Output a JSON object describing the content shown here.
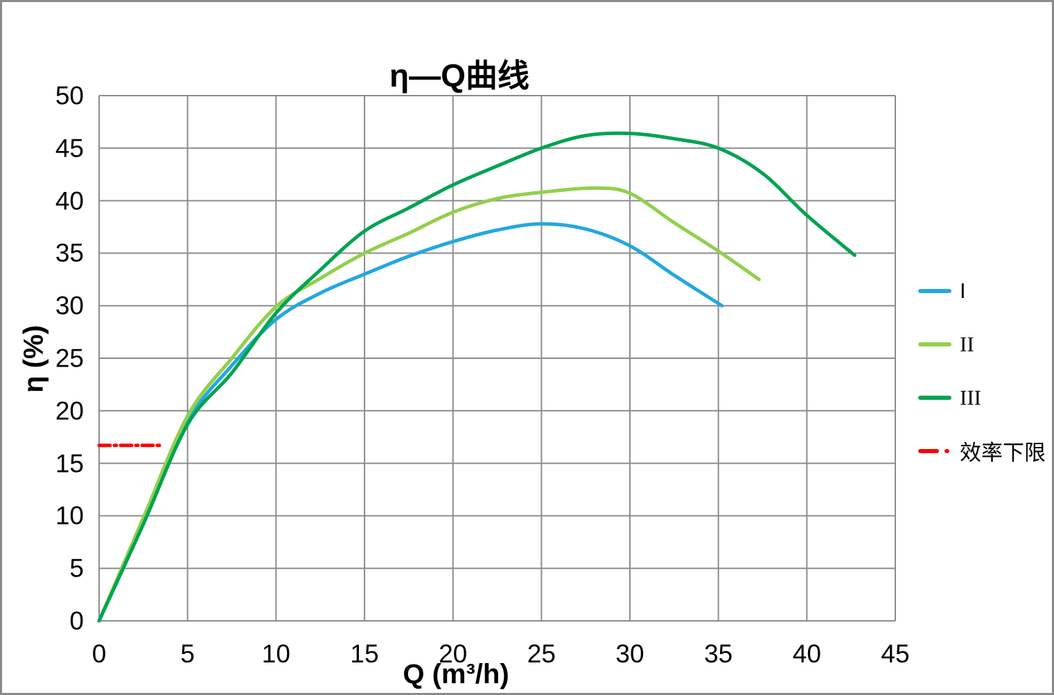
{
  "window": {
    "background": "#ffffff",
    "border_color": "#8a8a8a"
  },
  "chart_data": {
    "type": "line",
    "title": "η—Q曲线",
    "xlabel": "Q (m³/h)",
    "ylabel": "η (%)",
    "xlim": [
      0,
      45
    ],
    "ylim": [
      0,
      50
    ],
    "x_ticks": [
      0,
      5,
      10,
      15,
      20,
      25,
      30,
      35,
      40,
      45
    ],
    "y_ticks": [
      0,
      5,
      10,
      15,
      20,
      25,
      30,
      35,
      40,
      45,
      50
    ],
    "grid": true,
    "grid_color": "#8c8c8c",
    "text_color": "#000000",
    "legend_position": "right-outside",
    "series": [
      {
        "name": "I",
        "color": "#24A7DF",
        "style": "solid",
        "points": [
          [
            0,
            0
          ],
          [
            2.5,
            9.5
          ],
          [
            5,
            19.0
          ],
          [
            7.5,
            24.3
          ],
          [
            10,
            28.7
          ],
          [
            12.5,
            31.2
          ],
          [
            15,
            33.0
          ],
          [
            17.5,
            34.7
          ],
          [
            20,
            36.1
          ],
          [
            22.5,
            37.2
          ],
          [
            25,
            37.8
          ],
          [
            27.5,
            37.3
          ],
          [
            30,
            35.7
          ],
          [
            32.5,
            32.9
          ],
          [
            35.2,
            30.0
          ]
        ]
      },
      {
        "name": "II",
        "color": "#92CF4E",
        "style": "solid",
        "points": [
          [
            0,
            0
          ],
          [
            2.5,
            9.8
          ],
          [
            5,
            19.5
          ],
          [
            7.5,
            25.0
          ],
          [
            10,
            29.9
          ],
          [
            12.5,
            32.6
          ],
          [
            15,
            35.0
          ],
          [
            17.5,
            36.9
          ],
          [
            20,
            38.9
          ],
          [
            22.5,
            40.2
          ],
          [
            25,
            40.8
          ],
          [
            28,
            41.2
          ],
          [
            30,
            40.7
          ],
          [
            32.5,
            37.9
          ],
          [
            35,
            35.2
          ],
          [
            37.3,
            32.5
          ]
        ]
      },
      {
        "name": "III",
        "color": "#00A351",
        "style": "solid",
        "points": [
          [
            0,
            0
          ],
          [
            2.5,
            9.2
          ],
          [
            5,
            18.7
          ],
          [
            7.5,
            23.6
          ],
          [
            10,
            29.3
          ],
          [
            12.5,
            33.4
          ],
          [
            15,
            37.1
          ],
          [
            17.5,
            39.3
          ],
          [
            20,
            41.5
          ],
          [
            22.5,
            43.3
          ],
          [
            25,
            45.0
          ],
          [
            27.5,
            46.2
          ],
          [
            30,
            46.4
          ],
          [
            32.5,
            45.9
          ],
          [
            35,
            45.0
          ],
          [
            37.5,
            42.6
          ],
          [
            40,
            38.6
          ],
          [
            42.7,
            34.8
          ]
        ]
      },
      {
        "name": "效率下限",
        "color": "#FF0000",
        "style": "dash-dot",
        "points": [
          [
            0,
            16.7
          ],
          [
            3.5,
            16.7
          ]
        ]
      }
    ]
  }
}
